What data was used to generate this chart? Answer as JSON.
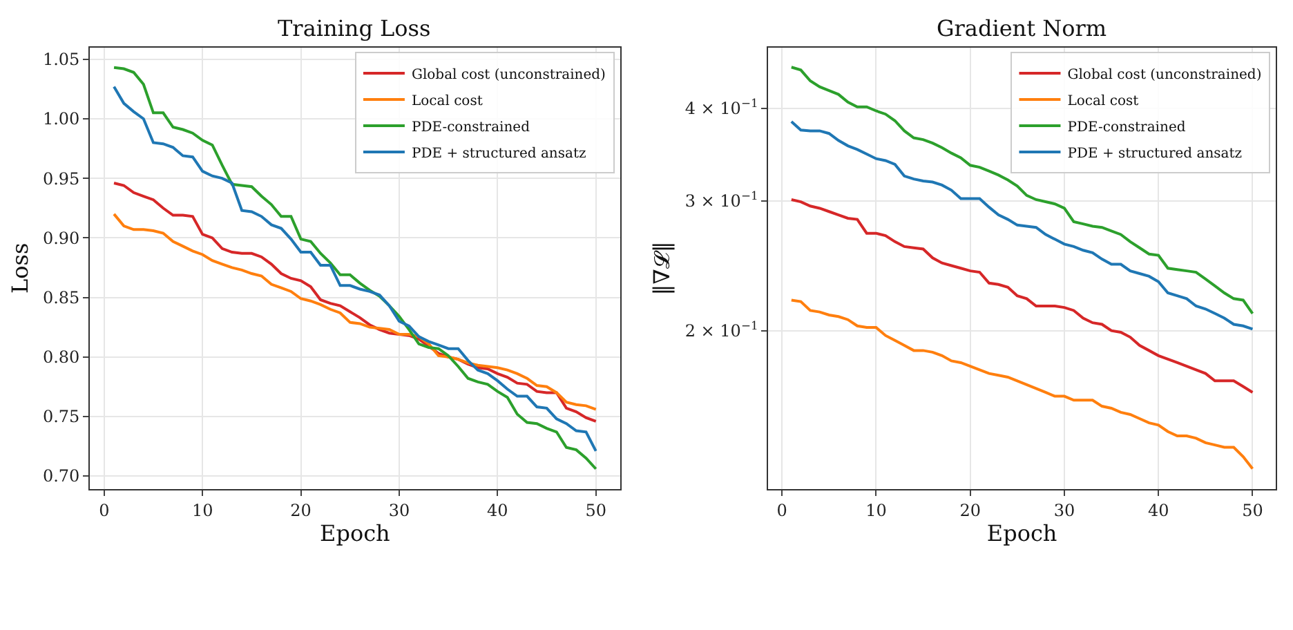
{
  "chart_data": [
    {
      "type": "line",
      "title": "Training Loss",
      "xlabel": "Epoch",
      "ylabel": "Loss",
      "x": [
        1,
        2,
        3,
        4,
        5,
        6,
        7,
        8,
        9,
        10,
        11,
        12,
        13,
        14,
        15,
        16,
        17,
        18,
        19,
        20,
        21,
        22,
        23,
        24,
        25,
        26,
        27,
        28,
        29,
        30,
        31,
        32,
        33,
        34,
        35,
        36,
        37,
        38,
        39,
        40,
        41,
        42,
        43,
        44,
        45,
        46,
        47,
        48,
        49,
        50
      ],
      "xlim": [
        -1.45,
        52.45
      ],
      "xticks": [
        0,
        10,
        20,
        30,
        40,
        50
      ],
      "ylim": [
        0.689,
        1.06
      ],
      "yticks": [
        {
          "value": 0.7,
          "label": "0.70"
        },
        {
          "value": 0.75,
          "label": "0.75"
        },
        {
          "value": 0.8,
          "label": "0.80"
        },
        {
          "value": 0.85,
          "label": "0.85"
        },
        {
          "value": 0.9,
          "label": "0.90"
        },
        {
          "value": 0.95,
          "label": "0.95"
        },
        {
          "value": 1.0,
          "label": "1.00"
        },
        {
          "value": 1.05,
          "label": "1.05"
        }
      ],
      "grid": true,
      "legend": "top right",
      "line_style": "solid",
      "series": [
        {
          "name": "Global cost (unconstrained)",
          "color": "#d62728",
          "values": [
            0.946,
            0.944,
            0.938,
            0.935,
            0.932,
            0.925,
            0.919,
            0.919,
            0.918,
            0.903,
            0.9,
            0.891,
            0.888,
            0.887,
            0.887,
            0.884,
            0.878,
            0.87,
            0.866,
            0.864,
            0.859,
            0.848,
            0.845,
            0.843,
            0.838,
            0.833,
            0.827,
            0.823,
            0.82,
            0.819,
            0.818,
            0.815,
            0.809,
            0.803,
            0.8,
            0.798,
            0.794,
            0.791,
            0.79,
            0.786,
            0.783,
            0.778,
            0.777,
            0.771,
            0.77,
            0.77,
            0.757,
            0.754,
            0.749,
            0.746
          ]
        },
        {
          "name": "Local cost",
          "color": "#ff7f0e",
          "values": [
            0.92,
            0.91,
            0.907,
            0.907,
            0.906,
            0.904,
            0.897,
            0.893,
            0.889,
            0.886,
            0.881,
            0.878,
            0.875,
            0.873,
            0.87,
            0.868,
            0.861,
            0.858,
            0.855,
            0.849,
            0.847,
            0.844,
            0.84,
            0.837,
            0.829,
            0.828,
            0.825,
            0.824,
            0.823,
            0.819,
            0.819,
            0.817,
            0.811,
            0.801,
            0.8,
            0.798,
            0.795,
            0.793,
            0.792,
            0.791,
            0.789,
            0.786,
            0.782,
            0.776,
            0.775,
            0.77,
            0.762,
            0.76,
            0.759,
            0.756
          ]
        },
        {
          "name": "PDE-constrained",
          "color": "#2ca02c",
          "values": [
            1.043,
            1.042,
            1.039,
            1.029,
            1.005,
            1.005,
            0.993,
            0.991,
            0.988,
            0.982,
            0.978,
            0.961,
            0.945,
            0.944,
            0.943,
            0.935,
            0.928,
            0.918,
            0.918,
            0.899,
            0.897,
            0.887,
            0.879,
            0.869,
            0.869,
            0.862,
            0.856,
            0.851,
            0.843,
            0.834,
            0.823,
            0.811,
            0.808,
            0.807,
            0.801,
            0.792,
            0.782,
            0.779,
            0.777,
            0.771,
            0.766,
            0.752,
            0.745,
            0.744,
            0.74,
            0.737,
            0.724,
            0.722,
            0.715,
            0.706
          ]
        },
        {
          "name": "PDE + structured ansatz",
          "color": "#1f77b4",
          "values": [
            1.027,
            1.013,
            1.006,
            1.0,
            0.98,
            0.979,
            0.976,
            0.969,
            0.968,
            0.956,
            0.952,
            0.95,
            0.946,
            0.923,
            0.922,
            0.918,
            0.911,
            0.908,
            0.899,
            0.888,
            0.888,
            0.877,
            0.877,
            0.86,
            0.86,
            0.857,
            0.855,
            0.852,
            0.843,
            0.83,
            0.826,
            0.817,
            0.813,
            0.81,
            0.807,
            0.807,
            0.797,
            0.789,
            0.786,
            0.78,
            0.773,
            0.767,
            0.767,
            0.758,
            0.757,
            0.748,
            0.744,
            0.738,
            0.737,
            0.721
          ]
        }
      ]
    },
    {
      "type": "line",
      "title": "Gradient Norm",
      "xlabel": "Epoch",
      "ylabel": "‖∇𝓛‖",
      "x": [
        1,
        2,
        3,
        4,
        5,
        6,
        7,
        8,
        9,
        10,
        11,
        12,
        13,
        14,
        15,
        16,
        17,
        18,
        19,
        20,
        21,
        22,
        23,
        24,
        25,
        26,
        27,
        28,
        29,
        30,
        31,
        32,
        33,
        34,
        35,
        36,
        37,
        38,
        39,
        40,
        41,
        42,
        43,
        44,
        45,
        46,
        47,
        48,
        49,
        50
      ],
      "xlim": [
        -1.45,
        52.45
      ],
      "xticks": [
        0,
        10,
        20,
        30,
        40,
        50
      ],
      "log": true,
      "ylim": [
        0.122,
        0.484
      ],
      "yticks": [
        {
          "value": 0.2,
          "label": "2 × 10$^{−1}$"
        },
        {
          "value": 0.3,
          "label": "3 × 10$^{−1}$"
        },
        {
          "value": 0.4,
          "label": "4 × 10$^{−1}$"
        }
      ],
      "grid": true,
      "legend": "top right",
      "line_style": "solid",
      "series": [
        {
          "name": "Global cost (unconstrained)",
          "color": "#d62728",
          "values": [
            0.301,
            0.299,
            0.295,
            0.293,
            0.29,
            0.287,
            0.284,
            0.283,
            0.271,
            0.271,
            0.269,
            0.264,
            0.26,
            0.259,
            0.258,
            0.251,
            0.247,
            0.245,
            0.243,
            0.241,
            0.24,
            0.232,
            0.231,
            0.229,
            0.223,
            0.221,
            0.216,
            0.216,
            0.216,
            0.215,
            0.213,
            0.208,
            0.205,
            0.204,
            0.2,
            0.199,
            0.196,
            0.191,
            0.188,
            0.185,
            0.183,
            0.181,
            0.179,
            0.177,
            0.175,
            0.171,
            0.171,
            0.171,
            0.168,
            0.165
          ]
        },
        {
          "name": "Local cost",
          "color": "#ff7f0e",
          "values": [
            0.22,
            0.219,
            0.213,
            0.212,
            0.21,
            0.209,
            0.207,
            0.203,
            0.202,
            0.202,
            0.197,
            0.194,
            0.191,
            0.188,
            0.188,
            0.187,
            0.185,
            0.182,
            0.181,
            0.179,
            0.177,
            0.175,
            0.174,
            0.173,
            0.171,
            0.169,
            0.167,
            0.165,
            0.163,
            0.163,
            0.161,
            0.161,
            0.161,
            0.158,
            0.157,
            0.155,
            0.154,
            0.152,
            0.15,
            0.149,
            0.146,
            0.144,
            0.144,
            0.143,
            0.141,
            0.14,
            0.139,
            0.139,
            0.135,
            0.13
          ]
        },
        {
          "name": "PDE-constrained",
          "color": "#2ca02c",
          "values": [
            0.455,
            0.451,
            0.436,
            0.428,
            0.423,
            0.418,
            0.408,
            0.402,
            0.402,
            0.397,
            0.393,
            0.385,
            0.373,
            0.365,
            0.363,
            0.359,
            0.354,
            0.348,
            0.343,
            0.335,
            0.333,
            0.329,
            0.325,
            0.32,
            0.314,
            0.305,
            0.301,
            0.299,
            0.297,
            0.293,
            0.281,
            0.279,
            0.277,
            0.276,
            0.273,
            0.27,
            0.264,
            0.259,
            0.254,
            0.253,
            0.243,
            0.242,
            0.241,
            0.24,
            0.235,
            0.23,
            0.225,
            0.221,
            0.22,
            0.211
          ]
        },
        {
          "name": "PDE + structured ansatz",
          "color": "#1f77b4",
          "values": [
            0.384,
            0.374,
            0.373,
            0.373,
            0.37,
            0.362,
            0.356,
            0.352,
            0.347,
            0.342,
            0.34,
            0.336,
            0.324,
            0.321,
            0.319,
            0.318,
            0.315,
            0.31,
            0.302,
            0.302,
            0.302,
            0.294,
            0.287,
            0.283,
            0.278,
            0.277,
            0.276,
            0.27,
            0.266,
            0.262,
            0.26,
            0.257,
            0.255,
            0.25,
            0.246,
            0.246,
            0.241,
            0.239,
            0.237,
            0.233,
            0.225,
            0.223,
            0.221,
            0.216,
            0.214,
            0.211,
            0.208,
            0.204,
            0.203,
            0.201
          ]
        }
      ]
    }
  ]
}
